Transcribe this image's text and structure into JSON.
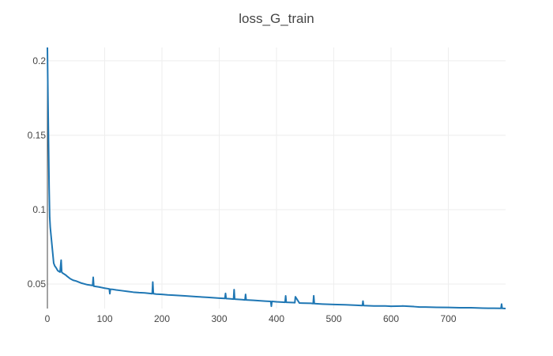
{
  "chart_data": {
    "type": "line",
    "title": "loss_G_train",
    "xlabel": "",
    "ylabel": "",
    "xlim": [
      0,
      800
    ],
    "ylim": [
      0.0335,
      0.209
    ],
    "x_ticks": [
      0,
      100,
      200,
      300,
      400,
      500,
      600,
      700
    ],
    "x_tick_labels": [
      "0",
      "100",
      "200",
      "300",
      "400",
      "500",
      "600",
      "700"
    ],
    "y_ticks": [
      0.05,
      0.1,
      0.15,
      0.2
    ],
    "y_tick_labels": [
      "0.05",
      "0.1",
      "0.15",
      "0.2"
    ],
    "grid": true,
    "legend": "none",
    "line_color": "#1f77b4",
    "series": [
      {
        "x": [
          0,
          1,
          2,
          3,
          4,
          5,
          7,
          9,
          11,
          13,
          15,
          18,
          20,
          22,
          24,
          25,
          26,
          28,
          30,
          32,
          35,
          40,
          45,
          50,
          60,
          70,
          79,
          80,
          81,
          90,
          100,
          108,
          109,
          110,
          115,
          120,
          130,
          140,
          150,
          160,
          170,
          183,
          184,
          185,
          190,
          200,
          210,
          220,
          240,
          260,
          280,
          300,
          310,
          311,
          312,
          320,
          325,
          326,
          327,
          340,
          345,
          346,
          347,
          360,
          380,
          390,
          391,
          392,
          400,
          415,
          416,
          417,
          430,
          432,
          433,
          440,
          460,
          464,
          465,
          466,
          480,
          500,
          520,
          540,
          550,
          551,
          552,
          570,
          590,
          600,
          620,
          640,
          650,
          660,
          680,
          700,
          720,
          740,
          760,
          770,
          780,
          792,
          793,
          794,
          800
        ],
        "y": [
          0.209,
          0.175,
          0.145,
          0.115,
          0.095,
          0.088,
          0.08,
          0.072,
          0.064,
          0.062,
          0.061,
          0.059,
          0.0585,
          0.058,
          0.066,
          0.058,
          0.0575,
          0.057,
          0.0565,
          0.056,
          0.055,
          0.0535,
          0.0525,
          0.052,
          0.0505,
          0.0495,
          0.049,
          0.0545,
          0.0485,
          0.048,
          0.0472,
          0.0467,
          0.0435,
          0.0465,
          0.0463,
          0.046,
          0.0455,
          0.045,
          0.0445,
          0.0442,
          0.044,
          0.0435,
          0.0513,
          0.0435,
          0.0432,
          0.043,
          0.0427,
          0.0425,
          0.042,
          0.0415,
          0.041,
          0.0405,
          0.0403,
          0.0437,
          0.0402,
          0.04,
          0.0398,
          0.0462,
          0.0398,
          0.0395,
          0.0393,
          0.043,
          0.0393,
          0.039,
          0.0385,
          0.0383,
          0.035,
          0.0383,
          0.038,
          0.0377,
          0.042,
          0.0377,
          0.0375,
          0.0374,
          0.0414,
          0.0372,
          0.037,
          0.0368,
          0.0421,
          0.0368,
          0.0365,
          0.0362,
          0.036,
          0.0357,
          0.0355,
          0.0385,
          0.0355,
          0.0352,
          0.0352,
          0.035,
          0.0352,
          0.0348,
          0.0345,
          0.0345,
          0.0343,
          0.0342,
          0.034,
          0.034,
          0.0338,
          0.0337,
          0.0337,
          0.0336,
          0.0365,
          0.0336,
          0.0335
        ]
      }
    ]
  }
}
